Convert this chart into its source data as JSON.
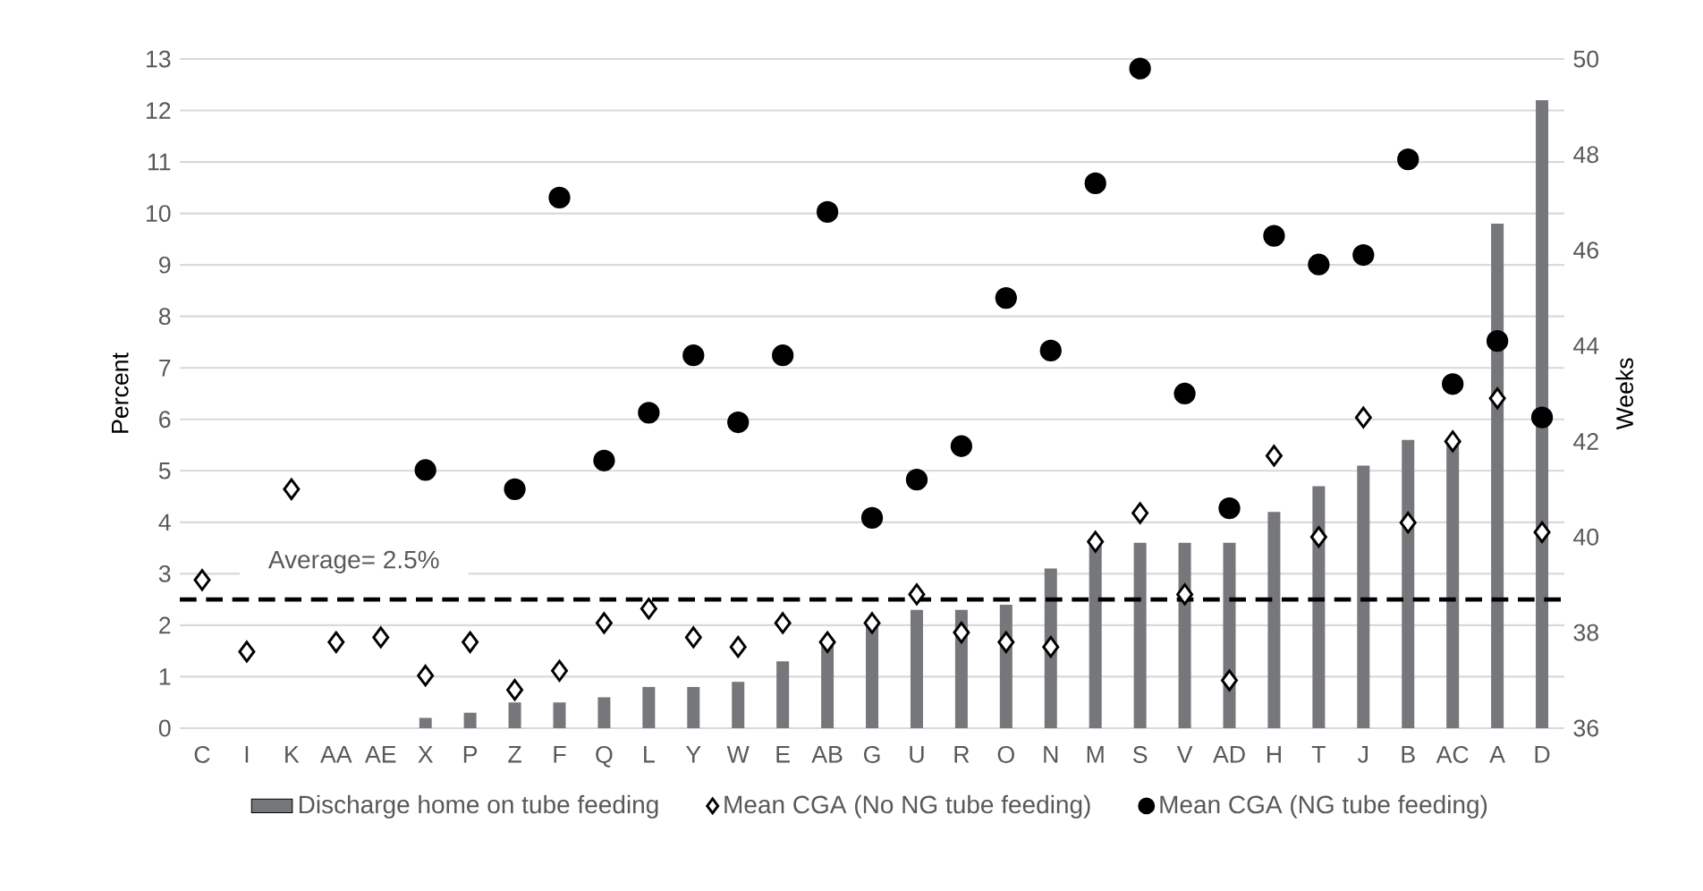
{
  "chart_data": {
    "type": "bar",
    "categories": [
      "C",
      "I",
      "K",
      "AA",
      "AE",
      "X",
      "P",
      "Z",
      "F",
      "Q",
      "L",
      "Y",
      "W",
      "E",
      "AB",
      "G",
      "U",
      "R",
      "O",
      "N",
      "M",
      "S",
      "V",
      "AD",
      "H",
      "T",
      "J",
      "B",
      "AC",
      "A",
      "D"
    ],
    "ylabel": "Percent",
    "y2label": "Weeks",
    "ylim": [
      0,
      13
    ],
    "yticks": [
      0,
      1,
      2,
      3,
      4,
      5,
      6,
      7,
      8,
      9,
      10,
      11,
      12,
      13
    ],
    "y2lim": [
      36,
      50
    ],
    "y2ticks": [
      36,
      38,
      40,
      42,
      44,
      46,
      48,
      50
    ],
    "grid": "y",
    "legend": "bottom",
    "series": [
      {
        "name": "Discharge home on tube feeding",
        "color": "#76777b",
        "values": [
          null,
          null,
          null,
          null,
          null,
          0.2,
          0.3,
          0.5,
          0.5,
          0.6,
          0.8,
          0.8,
          0.9,
          1.3,
          1.6,
          2.0,
          2.3,
          2.3,
          2.4,
          3.1,
          3.6,
          3.6,
          3.6,
          3.6,
          4.2,
          4.7,
          5.1,
          5.6,
          5.6,
          9.8,
          12.2
        ]
      },
      {
        "name": "Mean CGA (No NG tube feeding)",
        "type": "scatter",
        "axis": "y2",
        "marker": "diamond",
        "color": "#000000",
        "values": [
          39.1,
          37.6,
          41.0,
          37.8,
          37.9,
          37.1,
          37.8,
          36.8,
          37.2,
          38.2,
          38.5,
          37.9,
          37.7,
          38.2,
          37.8,
          38.2,
          38.8,
          38.0,
          37.8,
          37.7,
          39.9,
          40.5,
          38.8,
          37.0,
          41.7,
          40.0,
          42.5,
          40.3,
          42.0,
          42.9,
          40.1
        ]
      },
      {
        "name": "Mean CGA (NG tube feeding)",
        "type": "scatter",
        "axis": "y2",
        "marker": "circle",
        "color": "#000000",
        "values": [
          null,
          null,
          null,
          null,
          null,
          41.4,
          null,
          41.0,
          47.1,
          41.6,
          42.6,
          43.8,
          42.4,
          43.8,
          46.8,
          40.4,
          41.2,
          41.9,
          45.0,
          43.9,
          47.4,
          49.8,
          43.0,
          40.6,
          46.3,
          45.7,
          45.9,
          47.9,
          43.2,
          44.1,
          42.5
        ]
      }
    ],
    "ref_lines": [
      {
        "axis": "y",
        "value": 2.5,
        "label": "Average= 2.5%",
        "color": "#000000",
        "line_style": "dashed"
      }
    ]
  }
}
